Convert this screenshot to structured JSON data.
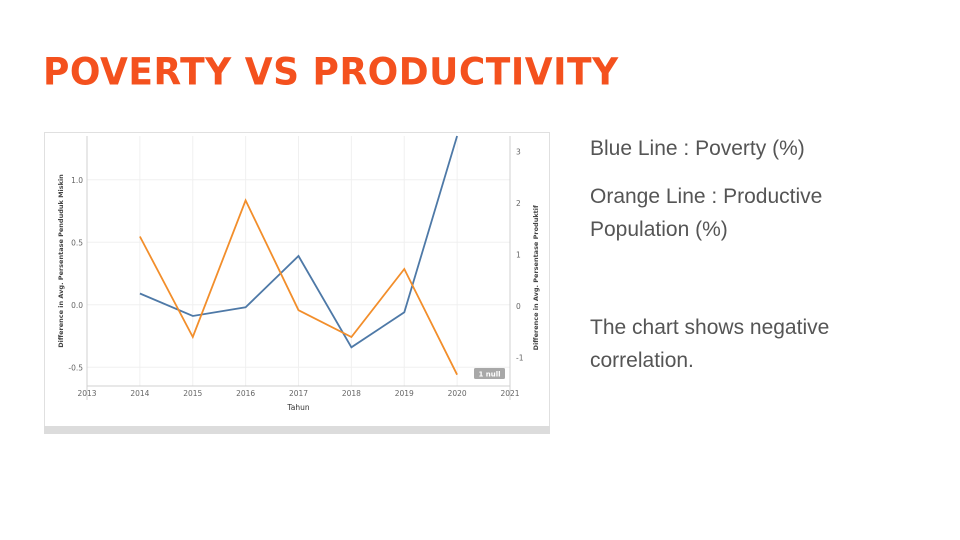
{
  "slide": {
    "title": "POVERTY VS PRODUCTIVITY",
    "legend_blue": "Blue Line : Poverty (%)",
    "legend_orange": "Orange Line : Productive Population (%)",
    "conclusion": "The chart shows negative correlation."
  },
  "chart_data": {
    "type": "line",
    "title": "",
    "xlabel": "Tahun",
    "ylabel_left": "Difference in Avg. Persentase Penduduk Miskin",
    "ylabel_right": "Difference in Avg. Persentase Produktif",
    "xlim": [
      2013,
      2021
    ],
    "x_ticks": [
      "2013",
      "2014",
      "2015",
      "2016",
      "2017",
      "2018",
      "2019",
      "2020",
      "2021"
    ],
    "ylim_left": [
      -0.65,
      1.35
    ],
    "ylim_right": [
      -1.55,
      3.3
    ],
    "y_ticks_left": [
      "1.0",
      "0.5",
      "0.0",
      "-0.5"
    ],
    "y_ticks_right": [
      "3",
      "2",
      "1",
      "0",
      "-1"
    ],
    "grid": true,
    "null_badge": "1 null",
    "series": [
      {
        "axis": "left",
        "color": "#4e79a7",
        "x": [
          2014,
          2015,
          2016,
          2017,
          2018,
          2019,
          2020
        ],
        "values": [
          0.09,
          -0.09,
          -0.02,
          0.39,
          -0.34,
          -0.06,
          1.35
        ]
      },
      {
        "axis": "right",
        "color": "#f28e2b",
        "x": [
          2014,
          2015,
          2016,
          2017,
          2018,
          2019,
          2020
        ],
        "values": [
          1.35,
          -0.6,
          2.05,
          -0.08,
          -0.6,
          0.72,
          -1.33
        ]
      }
    ]
  }
}
